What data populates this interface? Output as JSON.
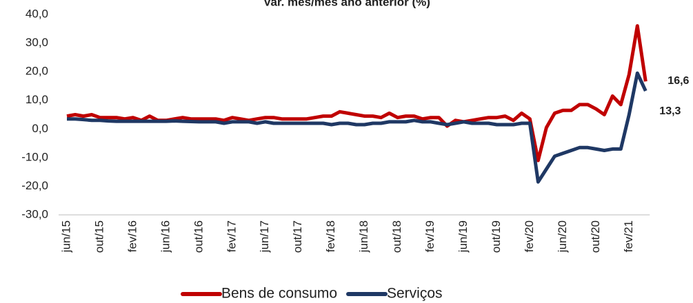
{
  "chart_data": {
    "type": "line",
    "title": "Var. mes/mes ano anterior (%)",
    "categories": [
      "jun/15",
      null,
      null,
      null,
      "out/15",
      null,
      null,
      null,
      "fev/16",
      null,
      null,
      null,
      "jun/16",
      null,
      null,
      null,
      "out/16",
      null,
      null,
      null,
      "fev/17",
      null,
      null,
      null,
      "jun/17",
      null,
      null,
      null,
      "out/17",
      null,
      null,
      null,
      "fev/18",
      null,
      null,
      null,
      "jun/18",
      null,
      null,
      null,
      "out/18",
      null,
      null,
      null,
      "fev/19",
      null,
      null,
      null,
      "jun/19",
      null,
      null,
      null,
      "out/19",
      null,
      null,
      null,
      "fev/20",
      null,
      null,
      null,
      "jun/20",
      null,
      null,
      null,
      "out/20",
      null,
      null,
      null,
      "fev/21",
      null,
      null
    ],
    "series": [
      {
        "name": "Bens de consumo",
        "color": "#c00000",
        "values": [
          4.5,
          5,
          4.5,
          5,
          4,
          4,
          4,
          3.5,
          4,
          3,
          4.5,
          3,
          3,
          3.5,
          4,
          3.5,
          3.5,
          3.5,
          3.5,
          3,
          4,
          3.5,
          3,
          3.5,
          4,
          4,
          3.5,
          3.5,
          3.5,
          3.5,
          4,
          4.5,
          4.5,
          6,
          5.5,
          5,
          4.5,
          4.5,
          4,
          5.5,
          4,
          4.5,
          4.5,
          3.5,
          4,
          4,
          1,
          3,
          2.5,
          3,
          3.5,
          4,
          4,
          4.5,
          3,
          5.5,
          3.5,
          -11,
          0.5,
          5.5,
          6.5,
          6.5,
          8.5,
          8.5,
          7,
          5,
          11.5,
          8.5,
          19,
          36,
          16.6
        ],
        "value_labels": [
          null,
          null,
          null,
          null,
          null,
          null,
          null,
          null,
          null,
          null,
          null,
          null,
          null,
          null,
          null,
          null,
          null,
          null,
          null,
          null,
          null,
          null,
          null,
          null,
          null,
          null,
          null,
          null,
          null,
          null,
          null,
          null,
          null,
          null,
          null,
          null,
          null,
          null,
          null,
          null,
          null,
          null,
          null,
          null,
          null,
          null,
          null,
          null,
          null,
          null,
          null,
          null,
          null,
          null,
          null,
          null,
          null,
          null,
          null,
          null,
          null,
          null,
          null,
          null,
          null,
          null,
          null,
          null,
          null,
          null,
          "16,6"
        ]
      },
      {
        "name": "Serviços",
        "color": "#1f3864",
        "values": [
          3.5,
          3.5,
          3.3,
          3,
          3,
          2.8,
          2.7,
          2.7,
          2.7,
          2.7,
          2.7,
          2.7,
          2.7,
          2.8,
          2.7,
          2.6,
          2.5,
          2.5,
          2.5,
          2,
          2.5,
          2.5,
          2.5,
          2,
          2.5,
          2,
          2,
          2,
          2,
          2,
          2,
          2,
          1.5,
          2,
          2,
          1.5,
          1.5,
          2,
          2,
          2.5,
          2.5,
          2.5,
          3,
          2.5,
          2.5,
          2,
          1.5,
          2,
          2.5,
          2,
          2,
          2,
          1.5,
          1.5,
          1.5,
          2,
          2,
          -18.5,
          -14,
          -9.5,
          -8.5,
          -7.5,
          -6.5,
          -6.5,
          -7,
          -7.5,
          -7,
          -7,
          5,
          19.5,
          13.3
        ],
        "value_labels": [
          null,
          null,
          null,
          null,
          null,
          null,
          null,
          null,
          null,
          null,
          null,
          null,
          null,
          null,
          null,
          null,
          null,
          null,
          null,
          null,
          null,
          null,
          null,
          null,
          null,
          null,
          null,
          null,
          null,
          null,
          null,
          null,
          null,
          null,
          null,
          null,
          null,
          null,
          null,
          null,
          null,
          null,
          null,
          null,
          null,
          null,
          null,
          null,
          null,
          null,
          null,
          null,
          null,
          null,
          null,
          null,
          null,
          null,
          null,
          null,
          null,
          null,
          null,
          null,
          null,
          null,
          null,
          null,
          null,
          null,
          "13,3"
        ]
      }
    ],
    "ylim": [
      -30,
      40
    ],
    "yticks": [
      {
        "value": -30,
        "label": "-30,0"
      },
      {
        "value": -20,
        "label": "-20,0"
      },
      {
        "value": -10,
        "label": "-10,0"
      },
      {
        "value": 0,
        "label": "0,0"
      },
      {
        "value": 10,
        "label": "10,0"
      },
      {
        "value": 20,
        "label": "20,0"
      },
      {
        "value": 30,
        "label": "30,0"
      },
      {
        "value": 40,
        "label": "40,0"
      }
    ],
    "grid": false,
    "legend": "bottom"
  }
}
